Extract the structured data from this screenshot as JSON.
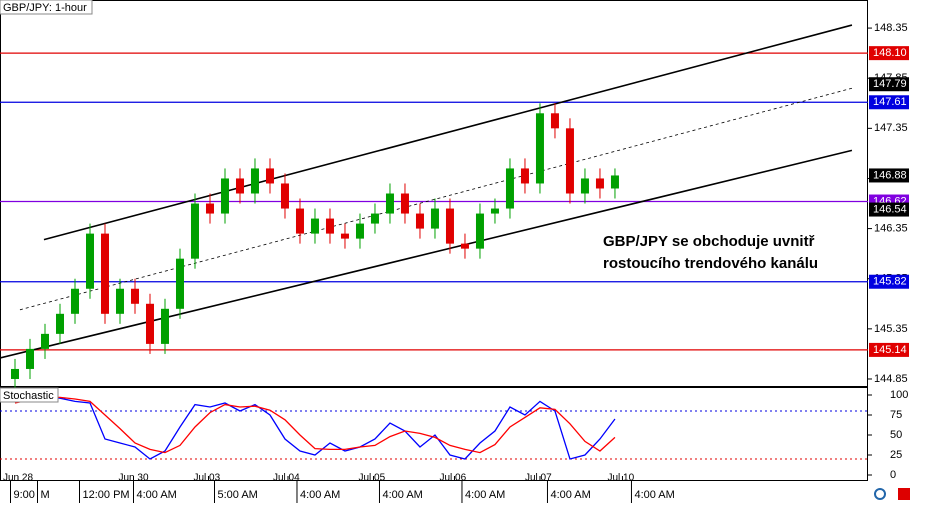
{
  "chart_data": {
    "type": "candlestick",
    "title": "GBP/JPY: 1-hour",
    "annotation": [
      "GBP/JPY se obchoduje uvnitř",
      "rostoucího trendového kanálu"
    ],
    "xlim": [
      -1,
      56.87
    ],
    "xticks": [
      {
        "value": 0.2,
        "label": "Jun 28"
      },
      {
        "value": 7.9,
        "label": "Jun 30"
      },
      {
        "value": 12.9,
        "label": "Jul 03"
      },
      {
        "value": 18.2,
        "label": "Jul 04"
      },
      {
        "value": 23.9,
        "label": "Jul 05"
      },
      {
        "value": 29.3,
        "label": "Jul 06"
      },
      {
        "value": 35,
        "label": "Jul 07"
      },
      {
        "value": 40.5,
        "label": "Jul 10"
      }
    ],
    "xticks_minor": [
      {
        "value": -0.3,
        "label": "9:00"
      },
      {
        "value": 1.5,
        "label": "M"
      },
      {
        "value": 4.3,
        "label": "12:00 PM"
      },
      {
        "value": 7.9,
        "label": "4:00 AM"
      },
      {
        "value": 13.3,
        "label": "5:00 AM"
      },
      {
        "value": 18.8,
        "label": "4:00 AM"
      },
      {
        "value": 24.3,
        "label": "4:00 AM"
      },
      {
        "value": 29.8,
        "label": "4:00 AM"
      },
      {
        "value": 35.5,
        "label": "4:00 AM"
      },
      {
        "value": 41.1,
        "label": "4:00 AM"
      }
    ],
    "ylim": [
      144.78,
      148.63
    ],
    "yticks": [
      148.35,
      147.85,
      147.35,
      146.85,
      146.35,
      145.85,
      145.35,
      144.85
    ],
    "up_color": "#00a000",
    "down_color": "#e00000",
    "open": [
      144.85,
      144.95,
      145.15,
      145.3,
      145.5,
      145.75,
      146.3,
      145.5,
      145.75,
      145.6,
      145.2,
      145.55,
      146.05,
      146.6,
      146.5,
      146.85,
      146.7,
      146.95,
      146.8,
      146.55,
      146.3,
      146.45,
      146.3,
      146.25,
      146.4,
      146.5,
      146.7,
      146.5,
      146.35,
      146.55,
      146.2,
      146.15,
      146.5,
      146.55,
      146.95,
      146.8,
      147.5,
      147.35,
      146.7,
      146.85,
      146.75
    ],
    "high": [
      145.05,
      145.25,
      145.4,
      145.6,
      145.85,
      146.4,
      146.4,
      145.85,
      145.85,
      145.7,
      145.65,
      146.15,
      146.7,
      146.7,
      146.95,
      146.95,
      147.05,
      147.05,
      146.9,
      146.65,
      146.55,
      146.55,
      146.4,
      146.5,
      146.6,
      146.8,
      146.8,
      146.6,
      146.65,
      146.65,
      146.3,
      146.6,
      146.65,
      147.05,
      147.05,
      147.6,
      147.6,
      147.45,
      146.95,
      146.95,
      146.95
    ],
    "low": [
      144.75,
      144.85,
      145.05,
      145.2,
      145.4,
      145.65,
      145.4,
      145.4,
      145.5,
      145.1,
      145.1,
      145.45,
      145.95,
      146.4,
      146.4,
      146.6,
      146.6,
      146.7,
      146.45,
      146.2,
      146.2,
      146.2,
      146.15,
      146.15,
      146.3,
      146.4,
      146.4,
      146.25,
      146.25,
      146.1,
      146.05,
      146.05,
      146.4,
      146.45,
      146.7,
      146.7,
      147.25,
      146.6,
      146.6,
      146.65,
      146.65
    ],
    "close": [
      144.95,
      145.15,
      145.3,
      145.5,
      145.75,
      146.3,
      145.5,
      145.75,
      145.6,
      145.2,
      145.55,
      146.05,
      146.6,
      146.5,
      146.85,
      146.7,
      146.95,
      146.8,
      146.55,
      146.3,
      146.45,
      146.3,
      146.25,
      146.4,
      146.5,
      146.7,
      146.5,
      146.35,
      146.55,
      146.2,
      146.15,
      146.5,
      146.55,
      146.95,
      146.8,
      147.5,
      147.35,
      146.7,
      146.85,
      146.75,
      146.88
    ],
    "levels": [
      {
        "value": 148.1,
        "label": "148.10",
        "color": "#e00000"
      },
      {
        "value": 147.61,
        "label": "147.61",
        "color": "#0000e0"
      },
      {
        "value": 146.62,
        "label": "146.62",
        "color": "#8000e0"
      },
      {
        "value": 145.82,
        "label": "145.82",
        "color": "#0000e0"
      },
      {
        "value": 145.14,
        "label": "145.14",
        "color": "#e00000"
      }
    ],
    "price_markers": [
      {
        "value": 147.79,
        "label": "147.79"
      },
      {
        "value": 146.54,
        "label": "146.54"
      },
      {
        "value": 146.88,
        "label": "146.88"
      }
    ],
    "trendlines": [
      {
        "x": [
          1.93,
          55.8
        ],
        "y": [
          146.24,
          148.38
        ],
        "dashed": false
      },
      {
        "x": [
          -1,
          55.8
        ],
        "y": [
          145.06,
          147.13
        ],
        "dashed": false
      },
      {
        "x": [
          0.33,
          55.8
        ],
        "y": [
          145.54,
          147.75
        ],
        "dashed": true
      }
    ],
    "stochastic": {
      "title": "Stochastic",
      "ylim": [
        -6.25,
        110
      ],
      "yticks": [
        100,
        75,
        50,
        25,
        0
      ],
      "levels": [
        {
          "value": 80,
          "color": "#0000e0"
        },
        {
          "value": 20,
          "color": "#e00000"
        }
      ],
      "series": [
        {
          "color": "#0000ff",
          "values": [
            95,
            97,
            98,
            96,
            92,
            90,
            45,
            40,
            35,
            20,
            30,
            60,
            88,
            85,
            90,
            80,
            88,
            75,
            45,
            30,
            25,
            40,
            30,
            35,
            45,
            65,
            55,
            35,
            50,
            25,
            20,
            40,
            55,
            85,
            75,
            92,
            80,
            20,
            25,
            45,
            70
          ]
        },
        {
          "color": "#ff0000",
          "values": [
            90,
            94,
            97,
            97,
            95,
            92,
            75,
            58,
            40,
            32,
            28,
            37,
            60,
            78,
            88,
            85,
            86,
            81,
            69,
            50,
            33,
            32,
            32,
            35,
            37,
            48,
            55,
            52,
            47,
            37,
            32,
            28,
            38,
            60,
            72,
            84,
            82,
            64,
            42,
            30,
            47
          ]
        }
      ]
    }
  }
}
